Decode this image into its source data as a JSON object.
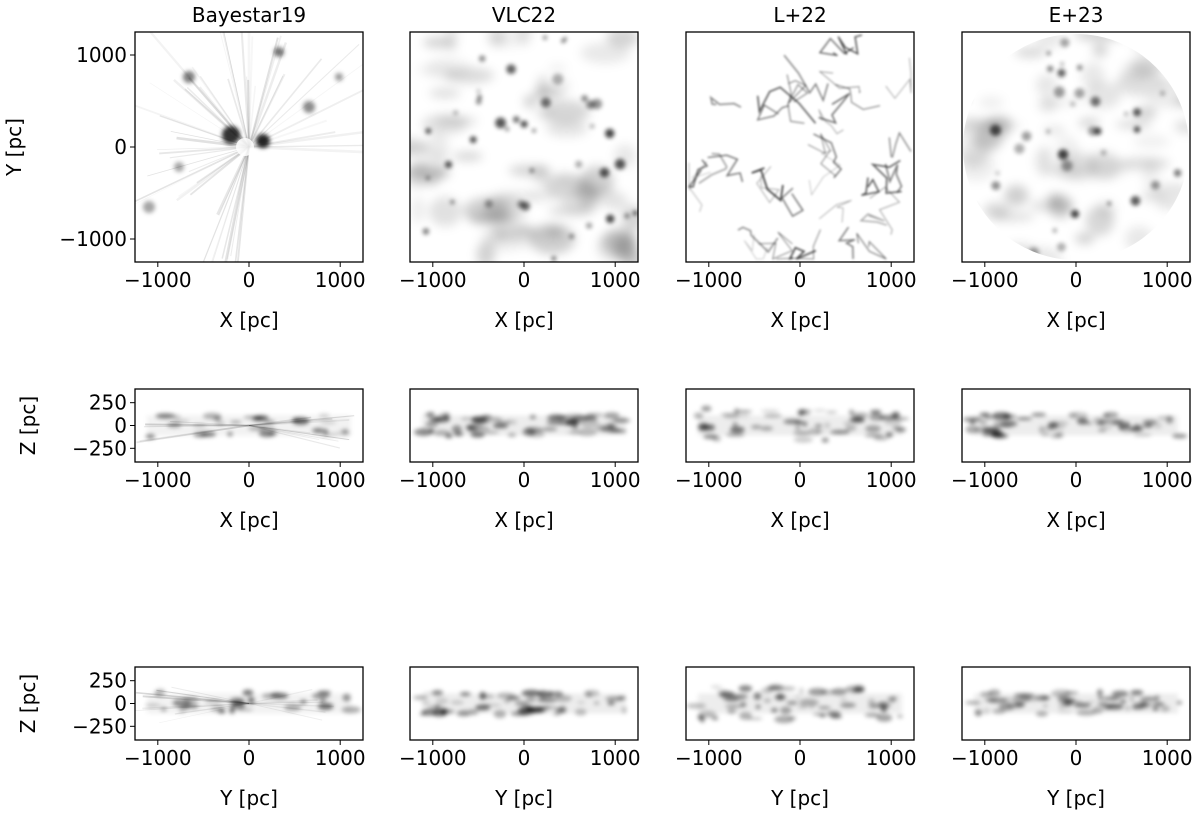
{
  "chart_data": [
    {
      "type": "heatmap",
      "title": "Bayestar19",
      "projection": "X-Y",
      "xlabel": "X [pc]",
      "ylabel": "Y [pc]",
      "xlim": [
        -1250,
        1250
      ],
      "ylim": [
        -1250,
        1250
      ],
      "xticks": [
        -1000,
        0,
        1000
      ],
      "yticks": [
        -1000,
        0,
        1000
      ],
      "colormap": "Greys",
      "footprint": "square",
      "grid": false
    },
    {
      "type": "heatmap",
      "title": "VLC22",
      "projection": "X-Y",
      "xlabel": "X [pc]",
      "ylabel": "",
      "xlim": [
        -1250,
        1250
      ],
      "ylim": [
        -1250,
        1250
      ],
      "xticks": [
        -1000,
        0,
        1000
      ],
      "yticks": [],
      "colormap": "Greys",
      "footprint": "square",
      "grid": false
    },
    {
      "type": "heatmap",
      "title": "L+22",
      "projection": "X-Y",
      "xlabel": "X [pc]",
      "ylabel": "",
      "xlim": [
        -1250,
        1250
      ],
      "ylim": [
        -1250,
        1250
      ],
      "xticks": [
        -1000,
        0,
        1000
      ],
      "yticks": [],
      "colormap": "Greys",
      "footprint": "square",
      "grid": false
    },
    {
      "type": "heatmap",
      "title": "E+23",
      "projection": "X-Y",
      "xlabel": "X [pc]",
      "ylabel": "",
      "xlim": [
        -1250,
        1250
      ],
      "ylim": [
        -1250,
        1250
      ],
      "xticks": [
        -1000,
        0,
        1000
      ],
      "yticks": [],
      "colormap": "Greys",
      "footprint": "circle",
      "grid": false
    },
    {
      "type": "heatmap",
      "title": "",
      "projection": "X-Z",
      "xlabel": "X [pc]",
      "ylabel": "Z [pc]",
      "xlim": [
        -1250,
        1250
      ],
      "ylim": [
        -400,
        400
      ],
      "xticks": [
        -1000,
        0,
        1000
      ],
      "yticks": [
        -250,
        0,
        250
      ],
      "colormap": "Greys",
      "grid": false
    },
    {
      "type": "heatmap",
      "title": "",
      "projection": "X-Z",
      "xlabel": "X [pc]",
      "ylabel": "",
      "xlim": [
        -1250,
        1250
      ],
      "ylim": [
        -400,
        400
      ],
      "xticks": [
        -1000,
        0,
        1000
      ],
      "yticks": [],
      "colormap": "Greys",
      "grid": false
    },
    {
      "type": "heatmap",
      "title": "",
      "projection": "X-Z",
      "xlabel": "X [pc]",
      "ylabel": "",
      "xlim": [
        -1250,
        1250
      ],
      "ylim": [
        -400,
        400
      ],
      "xticks": [
        -1000,
        0,
        1000
      ],
      "yticks": [],
      "colormap": "Greys",
      "grid": false
    },
    {
      "type": "heatmap",
      "title": "",
      "projection": "X-Z",
      "xlabel": "X [pc]",
      "ylabel": "",
      "xlim": [
        -1250,
        1250
      ],
      "ylim": [
        -400,
        400
      ],
      "xticks": [
        -1000,
        0,
        1000
      ],
      "yticks": [],
      "colormap": "Greys",
      "grid": false
    },
    {
      "type": "heatmap",
      "title": "",
      "projection": "Y-Z",
      "xlabel": "Y [pc]",
      "ylabel": "Z [pc]",
      "xlim": [
        -1250,
        1250
      ],
      "ylim": [
        -400,
        400
      ],
      "xticks": [
        -1000,
        0,
        1000
      ],
      "yticks": [
        -250,
        0,
        250
      ],
      "colormap": "Greys",
      "grid": false
    },
    {
      "type": "heatmap",
      "title": "",
      "projection": "Y-Z",
      "xlabel": "Y [pc]",
      "ylabel": "",
      "xlim": [
        -1250,
        1250
      ],
      "ylim": [
        -400,
        400
      ],
      "xticks": [
        -1000,
        0,
        1000
      ],
      "yticks": [],
      "colormap": "Greys",
      "grid": false
    },
    {
      "type": "heatmap",
      "title": "",
      "projection": "Y-Z",
      "xlabel": "Y [pc]",
      "ylabel": "",
      "xlim": [
        -1250,
        1250
      ],
      "ylim": [
        -400,
        400
      ],
      "xticks": [
        -1000,
        0,
        1000
      ],
      "yticks": [],
      "colormap": "Greys",
      "grid": false
    },
    {
      "type": "heatmap",
      "title": "",
      "projection": "Y-Z",
      "xlabel": "Y [pc]",
      "ylabel": "",
      "xlim": [
        -1250,
        1250
      ],
      "ylim": [
        -400,
        400
      ],
      "xticks": [
        -1000,
        0,
        1000
      ],
      "yticks": [],
      "colormap": "Greys",
      "grid": false
    }
  ]
}
